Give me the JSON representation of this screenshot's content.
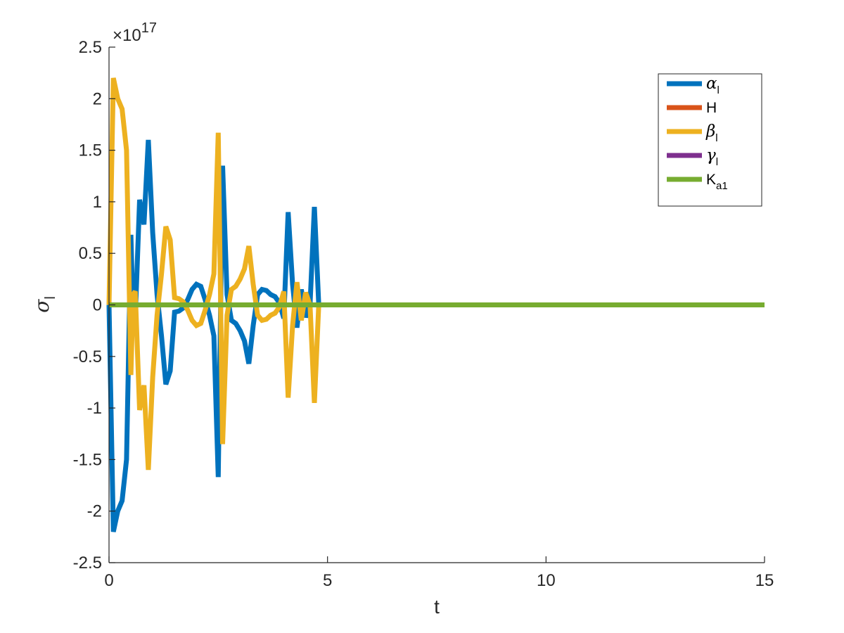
{
  "chart_data": {
    "type": "line",
    "xlabel": "t",
    "ylabel": {
      "symbol": "σ",
      "subscript": "l"
    },
    "xlim": [
      0,
      15
    ],
    "ylim": [
      -2.5,
      2.5
    ],
    "y_exponent_label": {
      "base": "×10",
      "exp": "17"
    },
    "x_ticks": [
      {
        "value": 0,
        "label": "0"
      },
      {
        "value": 5,
        "label": "5"
      },
      {
        "value": 10,
        "label": "10"
      },
      {
        "value": 15,
        "label": "15"
      }
    ],
    "y_ticks": [
      {
        "value": -2.5,
        "label": "-2.5"
      },
      {
        "value": -2,
        "label": "-2"
      },
      {
        "value": -1.5,
        "label": "-1.5"
      },
      {
        "value": -1,
        "label": "-1"
      },
      {
        "value": -0.5,
        "label": "-0.5"
      },
      {
        "value": 0,
        "label": "0"
      },
      {
        "value": 0.5,
        "label": "0.5"
      },
      {
        "value": 1,
        "label": "1"
      },
      {
        "value": 1.5,
        "label": "1.5"
      },
      {
        "value": 2,
        "label": "2"
      },
      {
        "value": 2.5,
        "label": "2.5"
      }
    ],
    "grid": false,
    "legend_position": "top-right",
    "series": [
      {
        "legend_main": "α",
        "legend_sub": "l",
        "legend_greek": true,
        "color": "#0072BD",
        "x": [
          0,
          0.1,
          0.2,
          0.3,
          0.4,
          0.5,
          0.55,
          0.6,
          0.7,
          0.8,
          0.9,
          1.0,
          1.1,
          1.2,
          1.3,
          1.4,
          1.5,
          1.6,
          1.7,
          1.8,
          1.9,
          2.0,
          2.1,
          2.2,
          2.3,
          2.4,
          2.5,
          2.6,
          2.7,
          2.8,
          2.9,
          3.0,
          3.1,
          3.2,
          3.3,
          3.4,
          3.5,
          3.6,
          3.7,
          3.8,
          3.9,
          4.0,
          4.1,
          4.2,
          4.3,
          4.4,
          4.5,
          4.6,
          4.7,
          4.8,
          4.9,
          5.0
        ],
        "y": [
          0,
          -2.2,
          -2.0,
          -1.9,
          -1.5,
          0.68,
          -0.1,
          -0.13,
          1.02,
          0.78,
          1.6,
          0.7,
          0.1,
          -0.3,
          -0.77,
          -0.64,
          -0.07,
          -0.06,
          -0.03,
          0.05,
          0.15,
          0.2,
          0.18,
          0.05,
          -0.1,
          -0.3,
          -1.67,
          1.35,
          0.1,
          -0.15,
          -0.18,
          -0.25,
          -0.35,
          -0.57,
          -0.2,
          0.1,
          0.15,
          0.14,
          0.1,
          0.08,
          0.02,
          -0.13,
          0.9,
          0.2,
          -0.22,
          0.15,
          -0.12,
          0.0,
          0.95,
          0.0,
          0.0,
          0.0
        ]
      },
      {
        "legend_main": "H",
        "legend_sub": "",
        "legend_greek": false,
        "color": "#D95319",
        "x": [
          0,
          15
        ],
        "y": [
          0,
          0
        ]
      },
      {
        "legend_main": "β",
        "legend_sub": "l",
        "legend_greek": true,
        "color": "#EDB120",
        "x": [
          0,
          0.1,
          0.2,
          0.3,
          0.4,
          0.5,
          0.55,
          0.6,
          0.7,
          0.8,
          0.9,
          1.0,
          1.1,
          1.2,
          1.3,
          1.4,
          1.5,
          1.6,
          1.7,
          1.8,
          1.9,
          2.0,
          2.1,
          2.2,
          2.3,
          2.4,
          2.5,
          2.6,
          2.7,
          2.8,
          2.9,
          3.0,
          3.1,
          3.2,
          3.3,
          3.4,
          3.5,
          3.6,
          3.7,
          3.8,
          3.9,
          4.0,
          4.1,
          4.2,
          4.3,
          4.4,
          4.5,
          4.6,
          4.7,
          4.8,
          4.9,
          5.0
        ],
        "y": [
          0,
          2.2,
          2.0,
          1.9,
          1.5,
          -0.68,
          0.1,
          0.13,
          -1.02,
          -0.78,
          -1.6,
          -0.7,
          -0.1,
          0.3,
          0.76,
          0.63,
          0.07,
          0.06,
          0.03,
          -0.05,
          -0.15,
          -0.2,
          -0.18,
          -0.05,
          0.1,
          0.3,
          1.67,
          -1.35,
          -0.1,
          0.15,
          0.18,
          0.25,
          0.35,
          0.57,
          0.2,
          -0.1,
          -0.15,
          -0.14,
          -0.1,
          -0.08,
          -0.02,
          0.13,
          -0.9,
          -0.2,
          0.22,
          -0.15,
          0.12,
          0.0,
          -0.95,
          0.0,
          0.0,
          0.0
        ]
      },
      {
        "legend_main": "γ",
        "legend_sub": "l",
        "legend_greek": true,
        "color": "#7E2F8E",
        "x": [
          0,
          15
        ],
        "y": [
          0,
          0
        ]
      },
      {
        "legend_main": "K",
        "legend_sub": "a1",
        "legend_greek": false,
        "color": "#77AC30",
        "x": [
          0,
          15
        ],
        "y": [
          0,
          0
        ]
      }
    ]
  }
}
